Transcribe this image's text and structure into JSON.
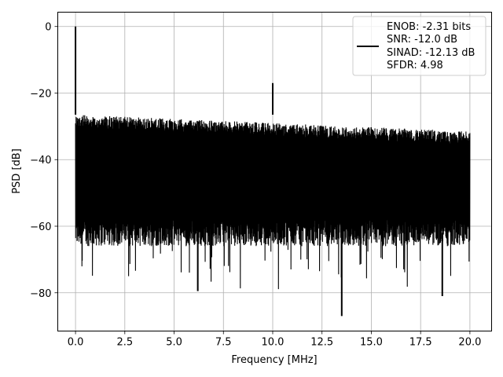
{
  "chart_data": {
    "type": "line",
    "title": "",
    "xlabel": "Frequency [MHz]",
    "ylabel": "PSD [dB]",
    "xlim": [
      -0.9,
      21.1
    ],
    "ylim": [
      -91.5,
      4.3
    ],
    "xticks": [
      0.0,
      2.5,
      5.0,
      7.5,
      10.0,
      12.5,
      15.0,
      17.5,
      20.0
    ],
    "xtick_labels": [
      "0.0",
      "2.5",
      "5.0",
      "7.5",
      "10.0",
      "12.5",
      "15.0",
      "17.5",
      "20.0"
    ],
    "yticks": [
      0,
      -20,
      -40,
      -60,
      -80
    ],
    "ytick_labels": [
      "0",
      "−20",
      "−40",
      "−60",
      "−80"
    ],
    "grid": true,
    "legend_position": "top-right",
    "legend": {
      "lines": [
        "ENOB: -2.31 bits",
        "SNR: -12.0 dB",
        "SINAD: -12.13 dB",
        "SFDR: 4.98"
      ]
    },
    "series": [
      {
        "color": "#000000",
        "x_range": [
          0.0,
          20.0
        ],
        "peaks": [
          {
            "x": 0.0,
            "y": 0.0
          },
          {
            "x": 10.0,
            "y": -17.0
          }
        ],
        "dips": [
          {
            "x": 13.5,
            "y": -87.0
          },
          {
            "x": 18.6,
            "y": -81.0
          },
          {
            "x": 6.2,
            "y": -79.5
          }
        ],
        "noise_top_start": -26.5,
        "noise_top_end": -31.5,
        "noise_bottom": -62.0
      }
    ]
  }
}
